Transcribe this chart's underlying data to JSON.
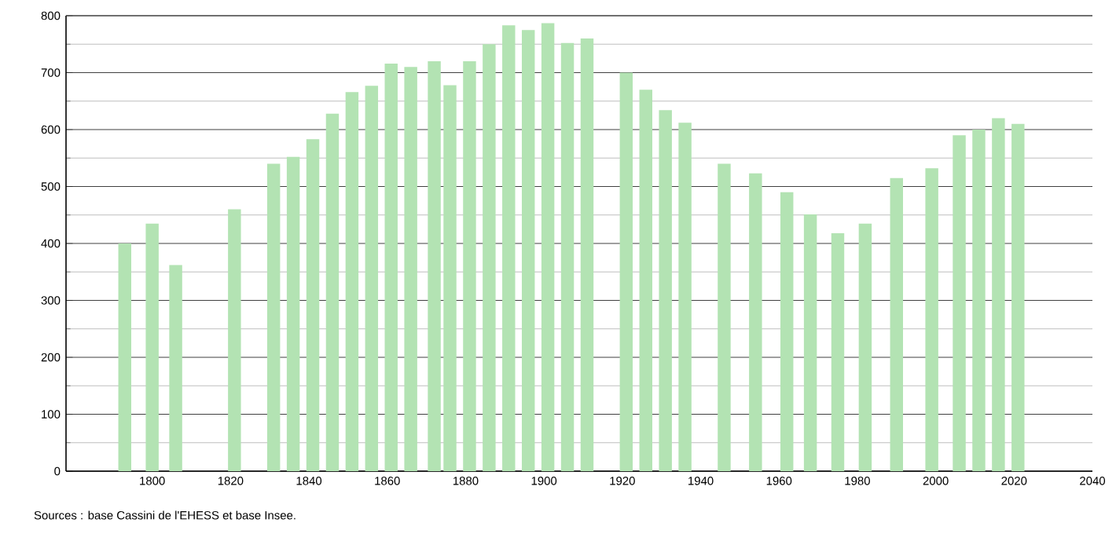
{
  "chart_data": {
    "type": "bar",
    "color": "#b3e3b3",
    "x": [
      1793,
      1800,
      1806,
      1821,
      1831,
      1836,
      1841,
      1846,
      1851,
      1856,
      1861,
      1866,
      1872,
      1876,
      1881,
      1886,
      1891,
      1896,
      1901,
      1906,
      1911,
      1921,
      1926,
      1931,
      1936,
      1946,
      1954,
      1962,
      1968,
      1975,
      1982,
      1990,
      1999,
      2006,
      2011,
      2016,
      2021
    ],
    "values": [
      400,
      435,
      362,
      460,
      540,
      552,
      583,
      628,
      666,
      677,
      716,
      710,
      720,
      678,
      720,
      750,
      783,
      775,
      787,
      752,
      760,
      700,
      670,
      634,
      612,
      540,
      523,
      490,
      451,
      418,
      435,
      515,
      532,
      590,
      600,
      620,
      610
    ],
    "xlim": [
      1778,
      2040
    ],
    "xticks": [
      1800,
      1820,
      1840,
      1860,
      1880,
      1900,
      1920,
      1940,
      1960,
      1980,
      2000,
      2020,
      2040
    ],
    "ylim": [
      0,
      800
    ],
    "yticks": [
      0,
      100,
      200,
      300,
      400,
      500,
      600,
      700,
      800
    ],
    "grid": "y",
    "annotations": [
      "Sources : base Cassini de l'EHESS et base Insee."
    ]
  }
}
